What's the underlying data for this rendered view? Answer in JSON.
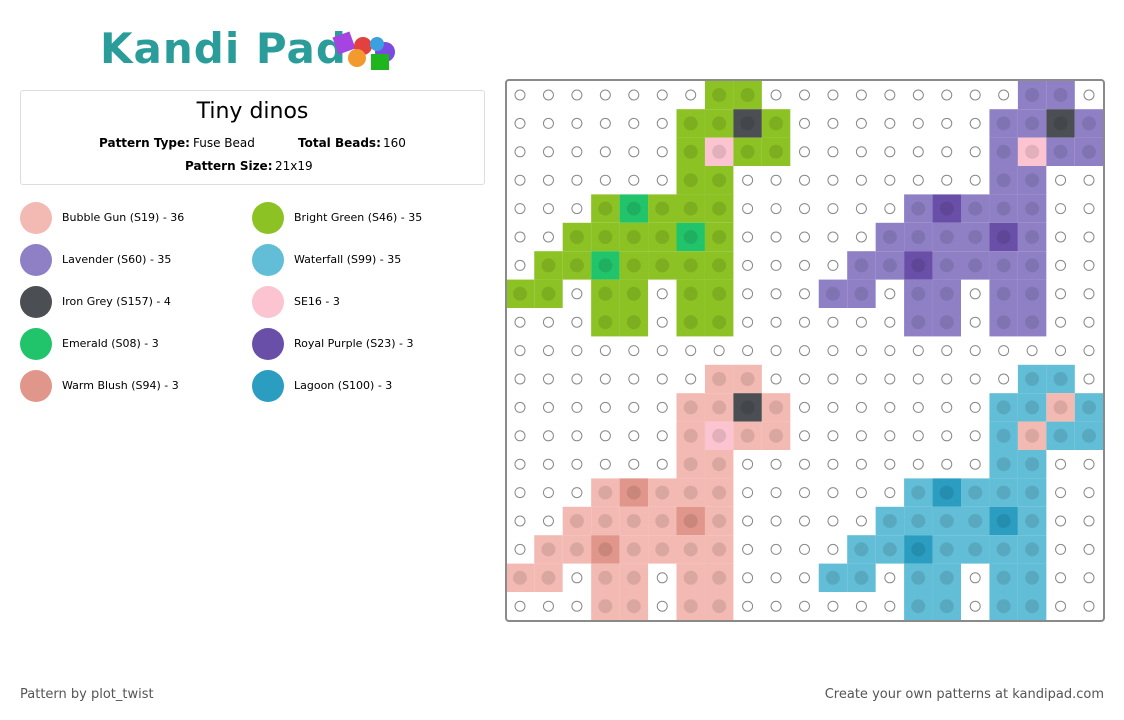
{
  "header": {
    "logo": "Kandi Pad"
  },
  "info": {
    "title": "Tiny dinos",
    "type_label": "Pattern Type:",
    "type_value": "Fuse Bead",
    "beads_label": "Total Beads:",
    "beads_value": "160",
    "size_label": "Pattern Size:",
    "size_value": "21x19"
  },
  "legend": [
    {
      "label": "Bubble Gun (S19) - 36",
      "color": "#f3bab3"
    },
    {
      "label": "Bright Green (S46) - 35",
      "color": "#8cc224"
    },
    {
      "label": "Lavender (S60) - 35",
      "color": "#8f80c6"
    },
    {
      "label": "Waterfall (S99) - 35",
      "color": "#62bdd6"
    },
    {
      "label": "Iron Grey (S157) - 4",
      "color": "#4b4e53"
    },
    {
      "label": "SE16 - 3",
      "color": "#fbc4d0"
    },
    {
      "label": "Emerald (S08) - 3",
      "color": "#22c46b"
    },
    {
      "label": "Royal Purple (S23) - 3",
      "color": "#6a4fa8"
    },
    {
      "label": "Warm Blush (S94) - 3",
      "color": "#e0968a"
    },
    {
      "label": "Lagoon (S100) - 3",
      "color": "#2a9dc1"
    }
  ],
  "footer": {
    "credit": "Pattern by plot_twist",
    "cta": "Create your own patterns at kandipad.com"
  }
}
